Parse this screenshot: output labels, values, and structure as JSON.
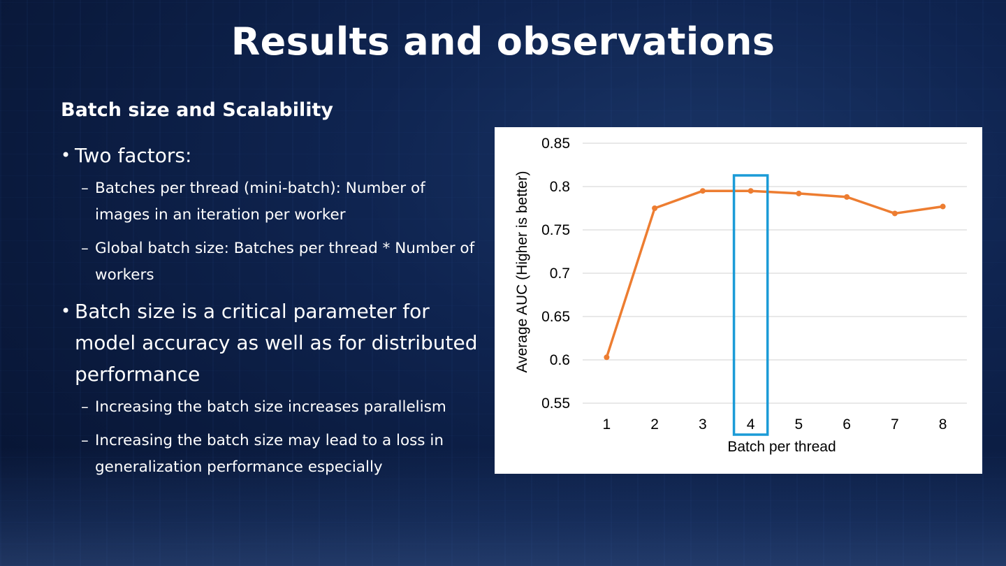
{
  "slide": {
    "title": "Results and observations",
    "subhead": "Batch size and Scalability"
  },
  "bullets": [
    {
      "text": "Two factors:",
      "sub": [
        "Batches per thread (mini-batch): Number of images in an iteration per worker",
        "Global batch size: Batches per thread * Number of workers"
      ]
    },
    {
      "text": "Batch size is a critical parameter for model accuracy as well as for distributed performance",
      "sub": [
        "Increasing the batch size increases parallelism",
        "Increasing the batch size may lead to a loss in generalization performance especially"
      ]
    }
  ],
  "glyphs": {
    "bullet": "•",
    "dash": "–"
  },
  "chart_data": {
    "type": "line",
    "x": [
      1,
      2,
      3,
      4,
      5,
      6,
      7,
      8
    ],
    "xticklabels": [
      "1",
      "2",
      "3",
      "4",
      "5",
      "6",
      "7",
      "8"
    ],
    "series": [
      {
        "values": [
          0.603,
          0.775,
          0.795,
          0.795,
          0.792,
          0.788,
          0.769,
          0.777
        ],
        "color": "#ed7d31"
      }
    ],
    "xlabel": "Batch per thread",
    "ylabel": "Average AUC (Higher is better)",
    "ylim": [
      0.55,
      0.85
    ],
    "yticks": [
      0.55,
      0.6,
      0.65,
      0.7,
      0.75,
      0.8,
      0.85
    ],
    "yticklabels": [
      "0.55",
      "0.6",
      "0.65",
      "0.7",
      "0.75",
      "0.8",
      "0.85"
    ],
    "grid": true,
    "highlight": {
      "x": 4,
      "color": "#1b9bd7"
    }
  }
}
